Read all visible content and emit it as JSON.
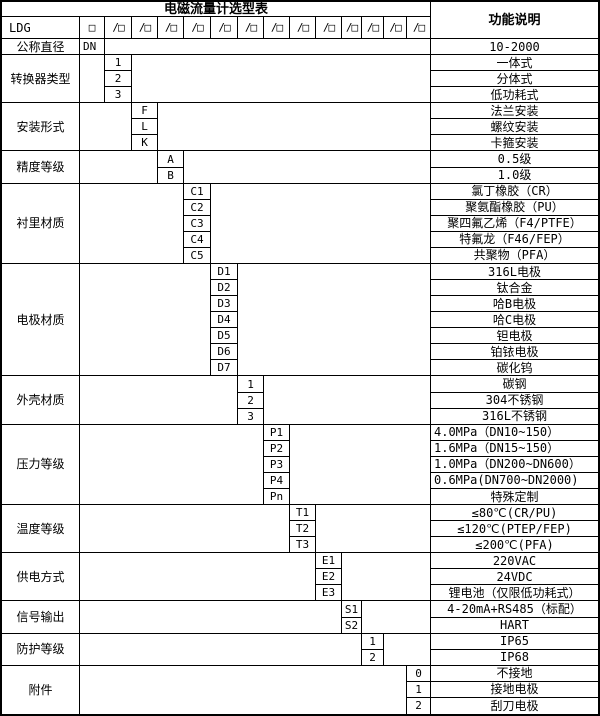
{
  "colors": {
    "border": "#000000",
    "background": "#ffffff",
    "text": "#000000"
  },
  "header": {
    "title": "电磁流量计选型表",
    "right_header": "功能说明",
    "model_code": "LDG",
    "box_glyph": "□",
    "slash_cells": [
      "/□",
      "/□",
      "/□",
      "/□",
      "/□",
      "/□",
      "/□",
      "/□",
      "/□",
      "/□",
      "/□",
      "/□",
      "/□"
    ]
  },
  "sections": [
    {
      "label": "公称直径",
      "code_col": 2,
      "rows": [
        {
          "code": "DN",
          "code_align": "left",
          "desc": "10-2000"
        }
      ]
    },
    {
      "label": "转换器类型",
      "code_col": 3,
      "rows": [
        {
          "code": "1",
          "desc": "一体式"
        },
        {
          "code": "2",
          "desc": "分体式"
        },
        {
          "code": "3",
          "desc": "低功耗式"
        }
      ]
    },
    {
      "label": "安装形式",
      "code_col": 4,
      "rows": [
        {
          "code": "F",
          "desc": "法兰安装"
        },
        {
          "code": "L",
          "desc": "螺纹安装"
        },
        {
          "code": "K",
          "desc": "卡箍安装"
        }
      ]
    },
    {
      "label": "精度等级",
      "code_col": 5,
      "rows": [
        {
          "code": "A",
          "desc": "0.5级"
        },
        {
          "code": "B",
          "desc": "1.0级"
        }
      ]
    },
    {
      "label": "衬里材质",
      "code_col": 6,
      "rows": [
        {
          "code": "C1",
          "desc": "氯丁橡胶（CR）"
        },
        {
          "code": "C2",
          "desc": "聚氨酯橡胶（PU）"
        },
        {
          "code": "C3",
          "desc": "聚四氟乙烯（F4/PTFE）"
        },
        {
          "code": "C4",
          "desc": "特氟龙（F46/FEP）"
        },
        {
          "code": "C5",
          "desc": "共聚物（PFA）"
        }
      ]
    },
    {
      "label": "电极材质",
      "code_col": 7,
      "rows": [
        {
          "code": "D1",
          "desc": "316L电极"
        },
        {
          "code": "D2",
          "desc": "钛合金"
        },
        {
          "code": "D3",
          "desc": "哈B电极"
        },
        {
          "code": "D4",
          "desc": "哈C电极"
        },
        {
          "code": "D5",
          "desc": "钽电极"
        },
        {
          "code": "D6",
          "desc": "铂铱电极"
        },
        {
          "code": "D7",
          "desc": "碳化钨"
        }
      ]
    },
    {
      "label": "外壳材质",
      "code_col": 8,
      "rows": [
        {
          "code": "1",
          "desc": "碳钢"
        },
        {
          "code": "2",
          "desc": "304不锈钢"
        },
        {
          "code": "3",
          "desc": "316L不锈钢"
        }
      ]
    },
    {
      "label": "压力等级",
      "code_col": 9,
      "rows": [
        {
          "code": "P1",
          "desc": "4.0MPa（DN10~150）",
          "align": "left"
        },
        {
          "code": "P2",
          "desc": "1.6MPa（DN15~150）",
          "align": "left"
        },
        {
          "code": "P3",
          "desc": "1.0MPa（DN200~DN600）",
          "align": "left"
        },
        {
          "code": "P4",
          "desc": "0.6MPa(DN700~DN2000)",
          "align": "left"
        },
        {
          "code": "Pn",
          "desc": "特殊定制"
        }
      ]
    },
    {
      "label": "温度等级",
      "code_col": 10,
      "rows": [
        {
          "code": "T1",
          "desc": "≤80℃(CR/PU)"
        },
        {
          "code": "T2",
          "desc": "≤120℃(PTEP/FEP)"
        },
        {
          "code": "T3",
          "desc": "≤200℃(PFA)"
        }
      ]
    },
    {
      "label": "供电方式",
      "code_col": 11,
      "rows": [
        {
          "code": "E1",
          "desc": "220VAC"
        },
        {
          "code": "E2",
          "desc": "24VDC"
        },
        {
          "code": "E3",
          "desc": "锂电池（仅限低功耗式）"
        }
      ]
    },
    {
      "label": "信号输出",
      "code_col": 12,
      "rows": [
        {
          "code": "S1",
          "desc": "4-20mA+RS485（标配）"
        },
        {
          "code": "S2",
          "desc": "HART"
        }
      ]
    },
    {
      "label": "防护等级",
      "code_col": 13,
      "rows": [
        {
          "code": "1",
          "desc": "IP65"
        },
        {
          "code": "2",
          "desc": "IP68"
        }
      ]
    },
    {
      "label": "附件",
      "code_col": 15,
      "rows": [
        {
          "code": "0",
          "desc": "不接地"
        },
        {
          "code": "1",
          "desc": "接地电极"
        },
        {
          "code": "2",
          "desc": "刮刀电极"
        }
      ]
    }
  ]
}
